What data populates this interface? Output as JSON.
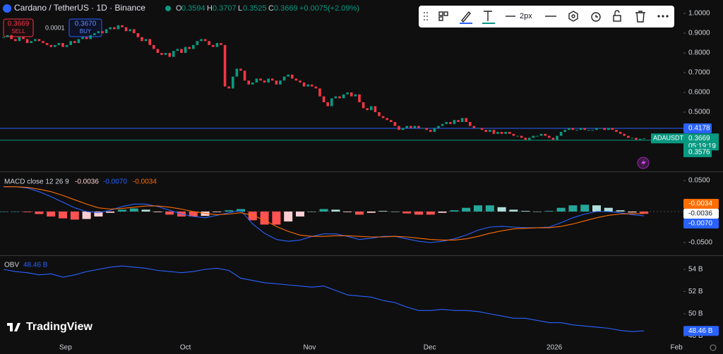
{
  "chart_data": [
    {
      "type": "candlestick",
      "title": "Cardano / TetherUS · 1D · Binance",
      "readout": {
        "o_label": "O",
        "o": "0.3594",
        "h_label": "H",
        "h": "0.3707",
        "l_label": "L",
        "l": "0.3525",
        "c_label": "C",
        "c": "0.3669",
        "change": "+0.0075",
        "change_pct": "(+2.09%)"
      },
      "sell": {
        "price": "0.3669",
        "label": "SELL"
      },
      "spread": "0.0001",
      "buy": {
        "price": "0.3670",
        "label": "BUY"
      },
      "toolbar": {
        "line_width": "2px"
      },
      "closes": [
        0.88,
        0.89,
        0.87,
        0.86,
        0.88,
        0.87,
        0.85,
        0.86,
        0.87,
        0.86,
        0.85,
        0.84,
        0.83,
        0.84,
        0.85,
        0.83,
        0.84,
        0.86,
        0.85,
        0.87,
        0.88,
        0.87,
        0.89,
        0.9,
        0.91,
        0.9,
        0.92,
        0.93,
        0.92,
        0.94,
        0.93,
        0.91,
        0.92,
        0.9,
        0.88,
        0.86,
        0.87,
        0.84,
        0.82,
        0.8,
        0.79,
        0.8,
        0.78,
        0.81,
        0.82,
        0.8,
        0.83,
        0.82,
        0.84,
        0.86,
        0.87,
        0.86,
        0.84,
        0.83,
        0.85,
        0.84,
        0.63,
        0.62,
        0.68,
        0.72,
        0.71,
        0.66,
        0.64,
        0.65,
        0.67,
        0.66,
        0.65,
        0.67,
        0.66,
        0.64,
        0.66,
        0.68,
        0.69,
        0.67,
        0.66,
        0.65,
        0.63,
        0.64,
        0.63,
        0.62,
        0.58,
        0.55,
        0.53,
        0.57,
        0.58,
        0.57,
        0.59,
        0.6,
        0.58,
        0.59,
        0.55,
        0.52,
        0.51,
        0.53,
        0.5,
        0.48,
        0.47,
        0.46,
        0.45,
        0.43,
        0.41,
        0.42,
        0.43,
        0.42,
        0.43,
        0.42,
        0.42,
        0.41,
        0.4,
        0.42,
        0.43,
        0.44,
        0.45,
        0.44,
        0.46,
        0.45,
        0.47,
        0.45,
        0.43,
        0.42,
        0.42,
        0.41,
        0.4,
        0.41,
        0.39,
        0.4,
        0.39,
        0.4,
        0.39,
        0.38,
        0.38,
        0.37,
        0.36,
        0.37,
        0.38,
        0.38,
        0.39,
        0.38,
        0.37,
        0.36,
        0.38,
        0.4,
        0.41,
        0.42,
        0.41,
        0.41,
        0.42,
        0.41,
        0.41,
        0.41,
        0.42,
        0.42,
        0.41,
        0.42,
        0.41,
        0.4,
        0.39,
        0.38,
        0.37,
        0.37,
        0.36,
        0.365,
        0.3669
      ],
      "up_color": "#089981",
      "down_color": "#f23645",
      "ylim": [
        0.2,
        1.068
      ],
      "yticks": [
        {
          "value": 1,
          "label": "1.0000"
        },
        {
          "value": 0.9,
          "label": "0.9000"
        },
        {
          "value": 0.8,
          "label": "0.8000"
        },
        {
          "value": 0.7,
          "label": "0.7000"
        },
        {
          "value": 0.6,
          "label": "0.6000"
        },
        {
          "value": 0.5,
          "label": "0.5000"
        }
      ],
      "price_lines": [
        {
          "value": 0.4178,
          "color": "#2962ff"
        },
        {
          "value": 0.3576,
          "color": "#089981"
        }
      ],
      "last": {
        "symbol": "ADAUSDT",
        "value": 0.3669,
        "countdown": "05:19:19"
      },
      "xticks": [
        {
          "value": 15.7,
          "label": "Sep"
        },
        {
          "value": 46,
          "label": "Oct"
        },
        {
          "value": 77.4,
          "label": "Nov"
        },
        {
          "value": 107.8,
          "label": "Dec"
        },
        {
          "value": 139.3,
          "label": "2026"
        },
        {
          "value": 170.2,
          "label": "Feb"
        }
      ]
    },
    {
      "type": "macd",
      "title": "MACD close 12 26 9",
      "readout": [
        -0.0036,
        {
          "value": -0.007,
          "label": "-0.0070"
        },
        -0.0034
      ],
      "ylim": [
        -0.0705,
        0.0625
      ],
      "yticks": [
        {
          "value": 0.05,
          "label": "0.0500"
        },
        {
          "value": -0.05,
          "label": "-0.0500"
        }
      ],
      "series": [
        {
          "name": "Histogram",
          "color": "#26a69a",
          "values": [
            0,
            0,
            -0.001,
            -0.004,
            -0.008,
            -0.011,
            -0.013,
            -0.012,
            -0.008,
            -0.002,
            0.003,
            0.005,
            0.003,
            -0.001,
            -0.005,
            -0.008,
            -0.008,
            -0.007,
            -0.001,
            0.002,
            0.004,
            -0.014,
            -0.021,
            -0.021,
            -0.016,
            -0.008,
            0,
            0.004,
            0.003,
            -0.001,
            -0.005,
            -0.002,
            0.001,
            0,
            -0.003,
            -0.005,
            -0.005,
            -0.002,
            0.002,
            0.006,
            0.01,
            0.01,
            0.007,
            0.003,
            0.001,
            0,
            0.001,
            0.006,
            0.01,
            0.011,
            0.01,
            0.006,
            0.002,
            -0.0015,
            -0.0036
          ]
        },
        {
          "name": "MACD",
          "color": "#2962ff",
          "values": [
            0.04,
            0.04,
            0.038,
            0.032,
            0.024,
            0.015,
            0.006,
            0,
            -0.002,
            0.002,
            0.008,
            0.012,
            0.012,
            0.008,
            0.002,
            -0.004,
            -0.008,
            -0.01,
            -0.006,
            -0.002,
            0.002,
            -0.02,
            -0.035,
            -0.045,
            -0.048,
            -0.046,
            -0.04,
            -0.036,
            -0.036,
            -0.04,
            -0.045,
            -0.043,
            -0.04,
            -0.04,
            -0.044,
            -0.048,
            -0.05,
            -0.048,
            -0.044,
            -0.038,
            -0.03,
            -0.025,
            -0.024,
            -0.025,
            -0.026,
            -0.026,
            -0.025,
            -0.018,
            -0.01,
            -0.004,
            0,
            0,
            -0.002,
            -0.005,
            -0.007
          ]
        },
        {
          "name": "Signal",
          "color": "#ff6d00",
          "values": [
            0.04,
            0.04,
            0.039,
            0.036,
            0.032,
            0.026,
            0.019,
            0.012,
            0.006,
            0.004,
            0.005,
            0.007,
            0.009,
            0.009,
            0.007,
            0.004,
            0,
            -0.003,
            -0.005,
            -0.004,
            -0.002,
            -0.006,
            -0.014,
            -0.024,
            -0.032,
            -0.038,
            -0.04,
            -0.04,
            -0.039,
            -0.039,
            -0.04,
            -0.041,
            -0.041,
            -0.04,
            -0.041,
            -0.043,
            -0.045,
            -0.046,
            -0.046,
            -0.044,
            -0.04,
            -0.035,
            -0.031,
            -0.028,
            -0.027,
            -0.026,
            -0.026,
            -0.024,
            -0.02,
            -0.015,
            -0.01,
            -0.006,
            -0.004,
            -0.0035,
            -0.0034
          ]
        }
      ]
    },
    {
      "type": "line",
      "title": "OBV",
      "readout": {
        "value": 48.46,
        "label": "48.46 B"
      },
      "color": "#2962ff",
      "values": [
        54.0,
        53.8,
        53.7,
        53.5,
        53.6,
        53.3,
        53.5,
        53.8,
        54.0,
        54.2,
        54.3,
        54.2,
        54.1,
        53.9,
        53.8,
        53.7,
        53.8,
        54.0,
        54.1,
        53.9,
        53.2,
        53.0,
        52.8,
        52.7,
        52.6,
        52.5,
        52.4,
        52.5,
        52.1,
        51.7,
        51.6,
        51.5,
        51.2,
        51.0,
        50.6,
        50.3,
        50.3,
        50.4,
        50.3,
        50.3,
        50.2,
        50.0,
        49.8,
        49.6,
        49.6,
        49.4,
        49.2,
        49.2,
        49.0,
        48.9,
        48.8,
        48.7,
        48.5,
        48.4,
        48.46
      ],
      "ylim": [
        47.65,
        55.14
      ],
      "yticks": [
        {
          "value": 54,
          "label": "54 B"
        },
        {
          "value": 52,
          "label": "52 B"
        },
        {
          "value": 50,
          "label": "50 B"
        },
        {
          "value": 48,
          "label": "48 B"
        }
      ]
    }
  ],
  "branding": "TradingView"
}
